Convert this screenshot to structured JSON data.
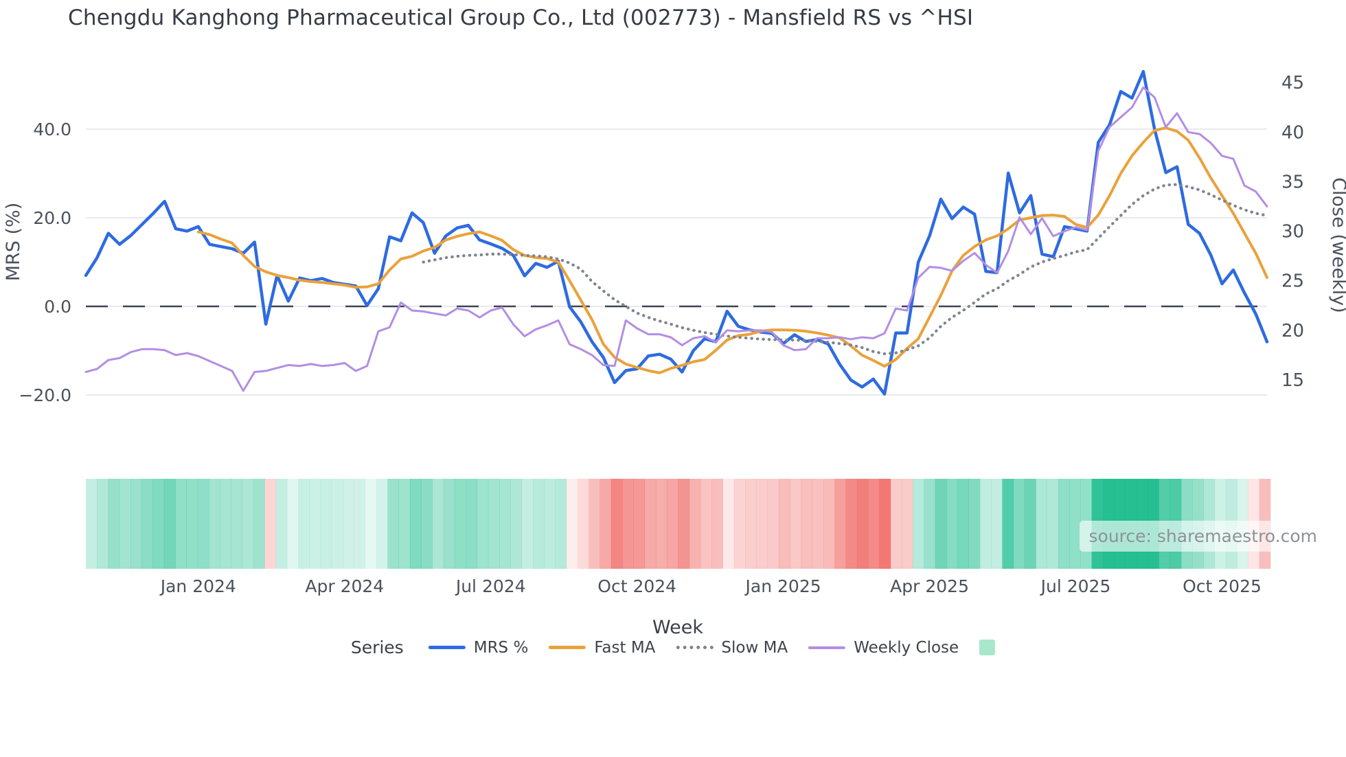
{
  "title": "Chengdu Kanghong Pharmaceutical Group Co., Ltd (002773) - Mansfield RS vs ^HSI",
  "source": "source: sharemaestro.com",
  "axes": {
    "left": {
      "title": "MRS (%)",
      "ticks": [
        {
          "label": "40.0",
          "value": 40
        },
        {
          "label": "20.0",
          "value": 20
        },
        {
          "label": "0.0",
          "value": 0
        },
        {
          "label": "−20.0",
          "value": -20
        }
      ]
    },
    "right": {
      "title": "Close (weekly)",
      "ticks": [
        {
          "label": "45",
          "value": 45
        },
        {
          "label": "40",
          "value": 40
        },
        {
          "label": "35",
          "value": 35
        },
        {
          "label": "30",
          "value": 30
        },
        {
          "label": "25",
          "value": 25
        },
        {
          "label": "20",
          "value": 20
        },
        {
          "label": "15",
          "value": 15
        }
      ]
    },
    "x": {
      "title": "Week",
      "ticks": [
        {
          "label": "Jan 2024",
          "week": 10
        },
        {
          "label": "Apr 2024",
          "week": 23
        },
        {
          "label": "Jul 2024",
          "week": 36
        },
        {
          "label": "Oct 2024",
          "week": 49
        },
        {
          "label": "Jan 2025",
          "week": 62
        },
        {
          "label": "Apr 2025",
          "week": 75
        },
        {
          "label": "Jul 2025",
          "week": 88
        },
        {
          "label": "Oct 2025",
          "week": 101
        }
      ]
    }
  },
  "legend": {
    "title": "Series",
    "items": [
      {
        "label": "MRS %",
        "style": "line",
        "color": "#2e6be0"
      },
      {
        "label": "Fast MA",
        "style": "line",
        "color": "#e9a23b"
      },
      {
        "label": "Slow MA",
        "style": "dotted",
        "color": "#7e8590"
      },
      {
        "label": "Weekly Close",
        "style": "line-thin",
        "color": "#b28ee3"
      }
    ],
    "extra_swatch_color": "#a9e7cc"
  },
  "colors": {
    "grid": "#e8eaee",
    "zero_line": "#3d4453",
    "tick_text": "#4a515b",
    "axis_title_text": "#4a515b",
    "strip_positive_base": "rgb(18,186,136)",
    "strip_negative_base": "rgb(238,96,92)"
  },
  "chart_data": {
    "type": "line",
    "title": "Chengdu Kanghong Pharmaceutical Group Co., Ltd (002773) - Mansfield RS vs ^HSI",
    "xlabel": "Week",
    "ylabel_left": "MRS (%)",
    "ylabel_right": "Close (weekly)",
    "x_unit": "weekly index, late Oct 2023 through early Nov 2025",
    "n_points": 106,
    "ylim_left": [
      -28.5,
      59.8
    ],
    "ylim_right": [
      9.7,
      49.2
    ],
    "grid": "horizontal only",
    "zero_line_dashed": true,
    "legend_position": "bottom center",
    "series": [
      {
        "name": "MRS %",
        "axis": "left",
        "color": "#2e6be0",
        "style": "solid",
        "width": 4.5,
        "values": [
          7,
          11,
          16.5,
          14,
          16,
          18.5,
          21,
          23.7,
          17.5,
          17,
          18,
          14,
          13.5,
          13,
          12,
          14.5,
          -4,
          7,
          1.2,
          6.4,
          5.8,
          6.3,
          5.4,
          5,
          4.6,
          0.2,
          4,
          15.7,
          14.8,
          21.1,
          18.9,
          12,
          15.9,
          17.7,
          18.3,
          15,
          14.1,
          13.1,
          11.5,
          6.9,
          9.7,
          8.8,
          10.2,
          -0.1,
          -3.5,
          -8,
          -11.5,
          -17.2,
          -14.5,
          -14.1,
          -11.2,
          -10.8,
          -11.9,
          -14.8,
          -10,
          -7.3,
          -8,
          -1.1,
          -4.5,
          -5.3,
          -5.8,
          -6.1,
          -8.4,
          -6.4,
          -7.9,
          -7.5,
          -8.5,
          -13,
          -16.6,
          -18.2,
          -16.4,
          -19.8,
          -6,
          -6,
          10,
          15.9,
          24.2,
          19.8,
          22.4,
          20.8,
          7.9,
          7.6,
          30.1,
          21.1,
          25,
          11.8,
          11.2,
          18,
          17.5,
          17,
          37,
          41,
          48.5,
          47,
          53,
          40,
          30.2,
          31.5,
          18.5,
          16.5,
          11.6,
          5.1,
          8.2,
          3,
          -1.7,
          -8
        ]
      },
      {
        "name": "Fast MA",
        "axis": "left",
        "color": "#e9a23b",
        "style": "solid",
        "width": 4,
        "values": [
          null,
          null,
          null,
          null,
          null,
          null,
          null,
          null,
          null,
          null,
          16.8,
          16.2,
          15.2,
          14.3,
          11.5,
          9,
          7.8,
          7,
          6.5,
          5.9,
          5.6,
          5.4,
          5.1,
          4.8,
          4.3,
          4.4,
          5.1,
          8.2,
          10.7,
          11.3,
          12.5,
          13.3,
          15,
          15.8,
          16.4,
          16.8,
          15.9,
          14.9,
          12.8,
          11.5,
          11,
          10.8,
          10,
          5.8,
          1.4,
          -3,
          -8.5,
          -11.5,
          -13,
          -13.8,
          -14.5,
          -15,
          -14,
          -13.3,
          -12.5,
          -12,
          -9.9,
          -7.6,
          -6.6,
          -6.3,
          -5.6,
          -5.3,
          -5.3,
          -5.4,
          -5.6,
          -6,
          -6.5,
          -7.1,
          -8.9,
          -11,
          -12.2,
          -13.5,
          -12,
          -9.5,
          -7.3,
          -2.4,
          2.5,
          8,
          11.5,
          13.5,
          15,
          15.9,
          17.5,
          19.5,
          20,
          20.5,
          20.6,
          20.3,
          18.5,
          17.8,
          20.6,
          25,
          30,
          34,
          37,
          39.7,
          40.3,
          39.5,
          37.5,
          33.5,
          29,
          25,
          21,
          16.5,
          12,
          6.5
        ]
      },
      {
        "name": "Slow MA",
        "axis": "left",
        "color": "#7e8590",
        "style": "dotted",
        "width": 4.2,
        "values": [
          null,
          null,
          null,
          null,
          null,
          null,
          null,
          null,
          null,
          null,
          null,
          null,
          null,
          null,
          null,
          null,
          null,
          null,
          null,
          null,
          null,
          null,
          null,
          null,
          null,
          null,
          null,
          null,
          null,
          null,
          10,
          10.5,
          11,
          11.3,
          11.5,
          11.6,
          11.8,
          11.8,
          11.7,
          11.5,
          11.4,
          11.2,
          10.7,
          9.8,
          8.4,
          5.6,
          3.5,
          1.5,
          0,
          -1.5,
          -2.5,
          -3.3,
          -4,
          -4.8,
          -5.4,
          -5.9,
          -6.3,
          -6.7,
          -7,
          -7.2,
          -7.4,
          -7.5,
          -7.6,
          -7.6,
          -7.7,
          -7.9,
          -8.1,
          -8.4,
          -8.7,
          -9.3,
          -10.2,
          -10.7,
          -10.5,
          -9.8,
          -8.9,
          -7.1,
          -4.5,
          -2.5,
          -0.9,
          0.9,
          2.8,
          4,
          5.8,
          7.2,
          8.9,
          10,
          10.8,
          11.5,
          12.3,
          12.8,
          15.4,
          18,
          20.5,
          23,
          25,
          26.5,
          27.4,
          27.5,
          27,
          26.3,
          25.2,
          24,
          22.8,
          21.8,
          21,
          20.5
        ]
      },
      {
        "name": "Weekly Close",
        "axis": "right",
        "color": "#b28ee3",
        "style": "solid",
        "width": 3,
        "values": [
          15.8,
          16.1,
          17,
          17.2,
          17.8,
          18.1,
          18.1,
          18,
          17.5,
          17.7,
          17.4,
          16.9,
          16.4,
          15.9,
          13.9,
          15.8,
          15.9,
          16.2,
          16.5,
          16.4,
          16.6,
          16.4,
          16.5,
          16.7,
          15.9,
          16.4,
          19.9,
          20.3,
          22.8,
          22,
          21.9,
          21.7,
          21.5,
          22.2,
          22,
          21.3,
          22,
          22.3,
          20.6,
          19.4,
          20.1,
          20.5,
          21,
          18.6,
          18.1,
          17.5,
          16.5,
          16.4,
          21,
          20.2,
          19.6,
          19.6,
          19.3,
          18.5,
          19.2,
          19.4,
          18.8,
          20,
          19.9,
          20,
          20,
          19.8,
          18.5,
          18,
          18.1,
          19.2,
          19.2,
          19.3,
          19.1,
          19.3,
          19.2,
          19.7,
          22.2,
          22,
          25.3,
          26.4,
          26.3,
          26,
          27,
          27.8,
          26.6,
          25.8,
          28,
          31.4,
          29.7,
          31.3,
          29.5,
          30,
          30.4,
          30.1,
          38.1,
          40.5,
          41.5,
          42.5,
          44.5,
          43.5,
          40.5,
          41.9,
          40,
          39.8,
          38.9,
          37.6,
          37.3,
          34.6,
          34,
          32.5
        ]
      }
    ],
    "heatmap_strip": {
      "description": "weekly color band under chart: green for positive MRS %, red for negative, intensity scales with magnitude",
      "derived_from": "MRS %"
    }
  }
}
